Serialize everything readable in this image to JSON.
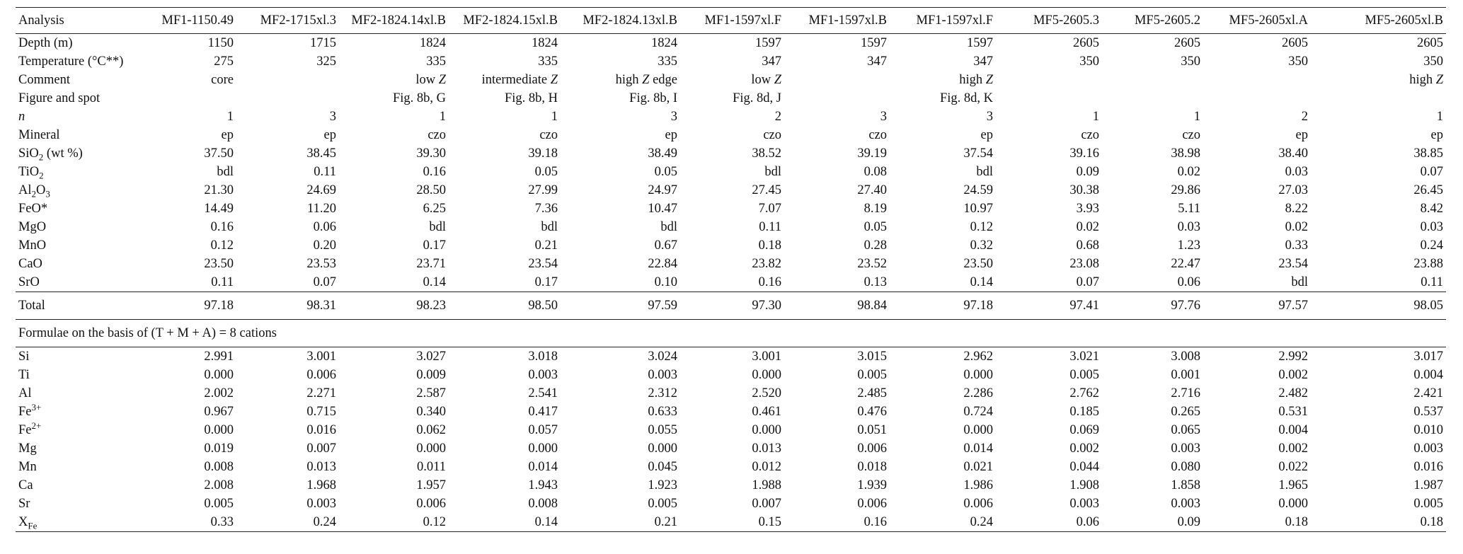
{
  "table": {
    "header_label": "Analysis",
    "columns": [
      "MF1-1150.49",
      "MF2-1715xl.3",
      "MF2-1824.14xl.B",
      "MF2-1824.15xl.B",
      "MF2-1824.13xl.B",
      "MF1-1597xl.F",
      "MF1-1597xl.B",
      "MF1-1597xl.F",
      "MF5-2605.3",
      "MF5-2605.2",
      "MF5-2605xl.A",
      "MF5-2605xl.B"
    ],
    "rows_top": [
      {
        "label": "Depth (m)",
        "values": [
          "1150",
          "1715",
          "1824",
          "1824",
          "1824",
          "1597",
          "1597",
          "1597",
          "2605",
          "2605",
          "2605",
          "2605"
        ]
      },
      {
        "label": "Temperature (°C**)",
        "values": [
          "275",
          "325",
          "335",
          "335",
          "335",
          "347",
          "347",
          "347",
          "350",
          "350",
          "350",
          "350"
        ]
      },
      {
        "label": "Comment",
        "values": [
          "core",
          "",
          "low Z",
          "intermediate Z",
          "high Z edge",
          "low Z",
          "",
          "high Z",
          "",
          "",
          "",
          "high Z"
        ]
      },
      {
        "label": "Figure and spot",
        "values": [
          "",
          "",
          "Fig. 8b, G",
          "Fig. 8b, H",
          "Fig. 8b, I",
          "Fig. 8d, J",
          "",
          "Fig. 8d, K",
          "",
          "",
          "",
          ""
        ]
      },
      {
        "label": "n",
        "values": [
          "1",
          "3",
          "1",
          "1",
          "3",
          "2",
          "3",
          "3",
          "1",
          "1",
          "2",
          "1"
        ]
      },
      {
        "label": "Mineral",
        "values": [
          "ep",
          "ep",
          "czo",
          "czo",
          "ep",
          "czo",
          "czo",
          "ep",
          "czo",
          "czo",
          "ep",
          "ep"
        ]
      },
      {
        "label": "SiO2 (wt %)",
        "values": [
          "37.50",
          "38.45",
          "39.30",
          "39.18",
          "38.49",
          "38.52",
          "39.19",
          "37.54",
          "39.16",
          "38.98",
          "38.40",
          "38.85"
        ]
      },
      {
        "label": "TiO2",
        "values": [
          "bdl",
          "0.11",
          "0.16",
          "0.05",
          "0.05",
          "bdl",
          "0.08",
          "bdl",
          "0.09",
          "0.02",
          "0.03",
          "0.07"
        ]
      },
      {
        "label": "Al2O3",
        "values": [
          "21.30",
          "24.69",
          "28.50",
          "27.99",
          "24.97",
          "27.45",
          "27.40",
          "24.59",
          "30.38",
          "29.86",
          "27.03",
          "26.45"
        ]
      },
      {
        "label": "FeO*",
        "values": [
          "14.49",
          "11.20",
          "6.25",
          "7.36",
          "10.47",
          "7.07",
          "8.19",
          "10.97",
          "3.93",
          "5.11",
          "8.22",
          "8.42"
        ]
      },
      {
        "label": "MgO",
        "values": [
          "0.16",
          "0.06",
          "bdl",
          "bdl",
          "bdl",
          "0.11",
          "0.05",
          "0.12",
          "0.02",
          "0.03",
          "0.02",
          "0.03"
        ]
      },
      {
        "label": "MnO",
        "values": [
          "0.12",
          "0.20",
          "0.17",
          "0.21",
          "0.67",
          "0.18",
          "0.28",
          "0.32",
          "0.68",
          "1.23",
          "0.33",
          "0.24"
        ]
      },
      {
        "label": "CaO",
        "values": [
          "23.50",
          "23.53",
          "23.71",
          "23.54",
          "22.84",
          "23.82",
          "23.52",
          "23.50",
          "23.08",
          "22.47",
          "23.54",
          "23.88"
        ]
      },
      {
        "label": "SrO",
        "values": [
          "0.11",
          "0.07",
          "0.14",
          "0.17",
          "0.10",
          "0.16",
          "0.13",
          "0.14",
          "0.07",
          "0.06",
          "bdl",
          "0.11"
        ]
      }
    ],
    "total": {
      "label": "Total",
      "values": [
        "97.18",
        "98.31",
        "98.23",
        "98.50",
        "97.59",
        "97.30",
        "98.84",
        "97.18",
        "97.41",
        "97.76",
        "97.57",
        "98.05"
      ]
    },
    "formula_note": "Formulae on the basis of (T + M + A) = 8 cations",
    "rows_bottom": [
      {
        "label": "Si",
        "values": [
          "2.991",
          "3.001",
          "3.027",
          "3.018",
          "3.024",
          "3.001",
          "3.015",
          "2.962",
          "3.021",
          "3.008",
          "2.992",
          "3.017"
        ]
      },
      {
        "label": "Ti",
        "values": [
          "0.000",
          "0.006",
          "0.009",
          "0.003",
          "0.003",
          "0.000",
          "0.005",
          "0.000",
          "0.005",
          "0.001",
          "0.002",
          "0.004"
        ]
      },
      {
        "label": "Al",
        "values": [
          "2.002",
          "2.271",
          "2.587",
          "2.541",
          "2.312",
          "2.520",
          "2.485",
          "2.286",
          "2.762",
          "2.716",
          "2.482",
          "2.421"
        ]
      },
      {
        "label": "Fe3+",
        "values": [
          "0.967",
          "0.715",
          "0.340",
          "0.417",
          "0.633",
          "0.461",
          "0.476",
          "0.724",
          "0.185",
          "0.265",
          "0.531",
          "0.537"
        ]
      },
      {
        "label": "Fe2+",
        "values": [
          "0.000",
          "0.016",
          "0.062",
          "0.057",
          "0.055",
          "0.000",
          "0.051",
          "0.000",
          "0.069",
          "0.065",
          "0.004",
          "0.010"
        ]
      },
      {
        "label": "Mg",
        "values": [
          "0.019",
          "0.007",
          "0.000",
          "0.000",
          "0.000",
          "0.013",
          "0.006",
          "0.014",
          "0.002",
          "0.003",
          "0.002",
          "0.003"
        ]
      },
      {
        "label": "Mn",
        "values": [
          "0.008",
          "0.013",
          "0.011",
          "0.014",
          "0.045",
          "0.012",
          "0.018",
          "0.021",
          "0.044",
          "0.080",
          "0.022",
          "0.016"
        ]
      },
      {
        "label": "Ca",
        "values": [
          "2.008",
          "1.968",
          "1.957",
          "1.943",
          "1.923",
          "1.988",
          "1.939",
          "1.986",
          "1.908",
          "1.858",
          "1.965",
          "1.987"
        ]
      },
      {
        "label": "Sr",
        "values": [
          "0.005",
          "0.003",
          "0.006",
          "0.008",
          "0.005",
          "0.007",
          "0.006",
          "0.006",
          "0.003",
          "0.003",
          "0.000",
          "0.005"
        ]
      },
      {
        "label": "XFe",
        "values": [
          "0.33",
          "0.24",
          "0.12",
          "0.14",
          "0.21",
          "0.15",
          "0.16",
          "0.24",
          "0.06",
          "0.09",
          "0.18",
          "0.18"
        ]
      }
    ]
  }
}
